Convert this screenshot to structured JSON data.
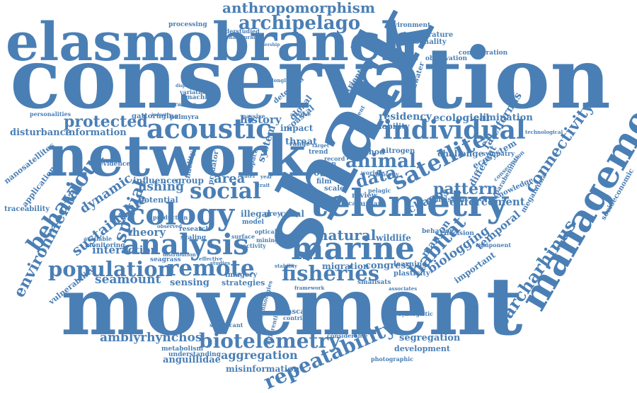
{
  "colors": {
    "word": "#4a7fb5",
    "background": "#ffffff"
  },
  "words": [
    "conservation",
    "shark",
    "movement",
    "elasmobranch",
    "network",
    "telemetry",
    "management",
    "marine",
    "ecology",
    "analysis",
    "acoustic",
    "individual",
    "satellite",
    "behaviour",
    "population",
    "remote",
    "fisheries",
    "social",
    "biotelemetry",
    "repeatability",
    "carcharhinus",
    "archipelago",
    "anthropomorphism",
    "connectivity",
    "habitat",
    "spatial",
    "environmental",
    "data",
    "animal",
    "pattern",
    "protected",
    "sustainable",
    "amblyrhynchos",
    "aggregation",
    "seamount",
    "dynamic",
    "information",
    "fishing",
    "theory",
    "interaction",
    "area",
    "tracking",
    "ecological",
    "residency",
    "falciformis",
    "elimination",
    "enforcement",
    "biologging",
    "temporal",
    "chagos",
    "manton",
    "natural",
    "wildlife",
    "marine",
    "ocean",
    "important",
    "different",
    "ecosystem",
    "congress",
    "migration",
    "segregation",
    "development",
    "anguillidae",
    "misinformation",
    "disturbance",
    "nanosatellites",
    "application",
    "traceability",
    "vulnerability",
    "sensing",
    "strategies",
    "system",
    "illegal",
    "fishing",
    "coastal",
    "global",
    "history",
    "threat",
    "trade",
    "impact",
    "fish",
    "film",
    "detection",
    "nutrient",
    "freshwater",
    "environment",
    "temperature",
    "personality",
    "consideration",
    "observation",
    "processing",
    "gattorugine",
    "palmyra",
    "influence",
    "group",
    "potential",
    "fidelity",
    "predator",
    "seagrass",
    "imagery",
    "seascape",
    "photographic",
    "metabolism",
    "understanding",
    "production",
    "monitoring",
    "evidence",
    "socioeconomic",
    "megafauna",
    "knowledge",
    "consistent",
    "review",
    "technological",
    "sympatry",
    "component",
    "decision",
    "behavior",
    "synergistic",
    "considerable",
    "contribute",
    "significant",
    "technologies",
    "differential",
    "plasticity",
    "learning",
    "smallsats",
    "indian",
    "method",
    "nitrogen",
    "challenge",
    "mobility",
    "patrolling",
    "variation",
    "machine",
    "practice",
    "personalities",
    "industry",
    "leadership",
    "understudied",
    "behavioural",
    "displacement",
    "research",
    "scaling",
    "observed",
    "available",
    "passive",
    "longline",
    "analyse",
    "spatial",
    "space",
    "trait",
    "year",
    "water",
    "model",
    "optical",
    "mining",
    "scale",
    "grey",
    "coral",
    "ethical",
    "human",
    "record",
    "world",
    "biology",
    "pelagic",
    "current",
    "range",
    "trend",
    "target",
    "distribution",
    "effective",
    "parabennius",
    "conservation",
    "activity",
    "surface",
    "studies",
    "stability",
    "framework",
    "associates"
  ]
}
